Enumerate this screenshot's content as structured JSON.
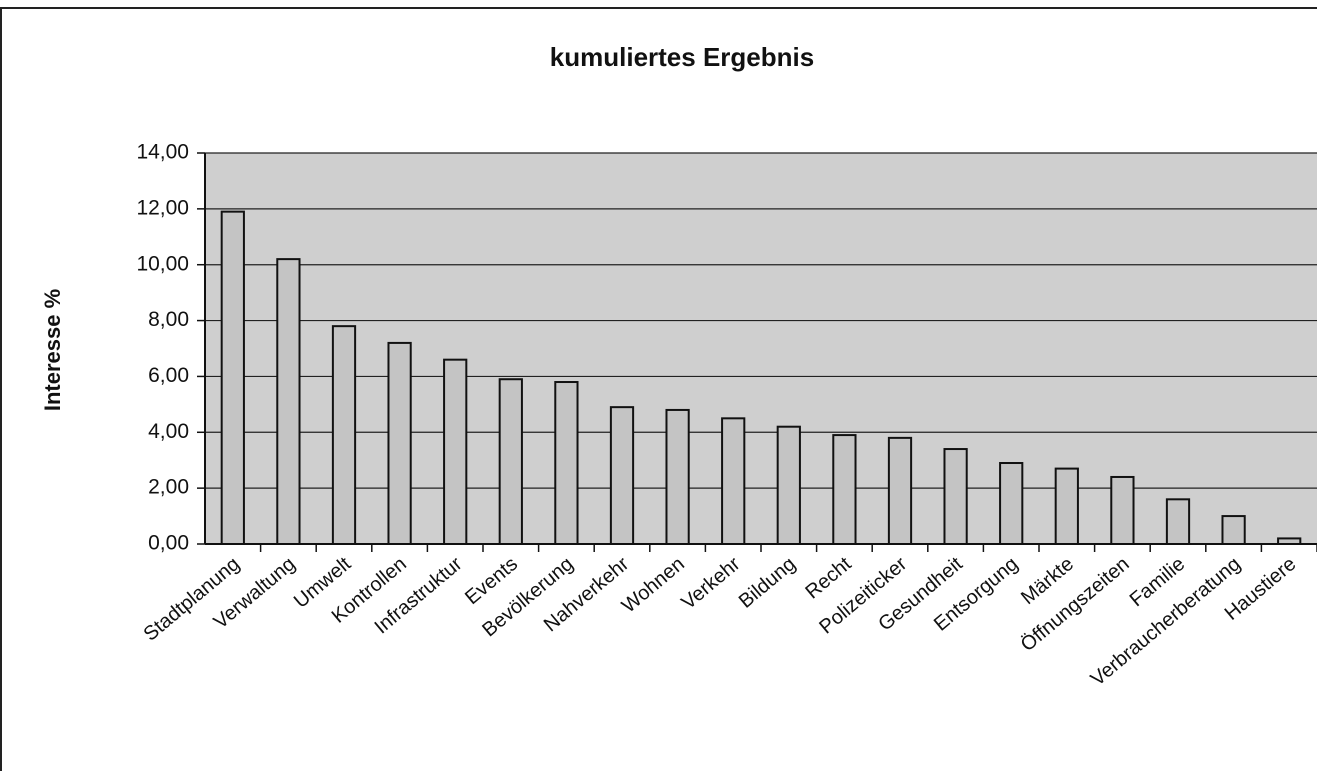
{
  "chart_data": {
    "type": "bar",
    "title": "kumuliertes Ergebnis",
    "y_label": "Interesse %",
    "categories": [
      "Stadtplanung",
      "Verwaltung",
      "Umwelt",
      "Kontrollen",
      "Infrastruktur",
      "Events",
      "Bevölkerung",
      "Nahverkehr",
      "Wohnen",
      "Verkehr",
      "Bildung",
      "Recht",
      "Polizeiticker",
      "Gesundheit",
      "Entsorgung",
      "Märkte",
      "Öffnungszeiten",
      "Familie",
      "Verbraucherberatung",
      "Haustiere"
    ],
    "values": [
      11.9,
      10.2,
      7.8,
      7.2,
      6.6,
      5.9,
      5.8,
      4.9,
      4.8,
      4.5,
      4.2,
      3.9,
      3.8,
      3.4,
      2.9,
      2.7,
      2.4,
      1.6,
      1.0,
      0.2
    ],
    "color": "#c4c4c4",
    "ylim": [
      0,
      14
    ],
    "yticks": [
      {
        "value": 0,
        "label": "0,00"
      },
      {
        "value": 2,
        "label": "2,00"
      },
      {
        "value": 4,
        "label": "4,00"
      },
      {
        "value": 6,
        "label": "6,00"
      },
      {
        "value": 8,
        "label": "8,00"
      },
      {
        "value": 10,
        "label": "10,00"
      },
      {
        "value": 12,
        "label": "12,00"
      },
      {
        "value": 14,
        "label": "14,00"
      }
    ],
    "grid": true
  }
}
